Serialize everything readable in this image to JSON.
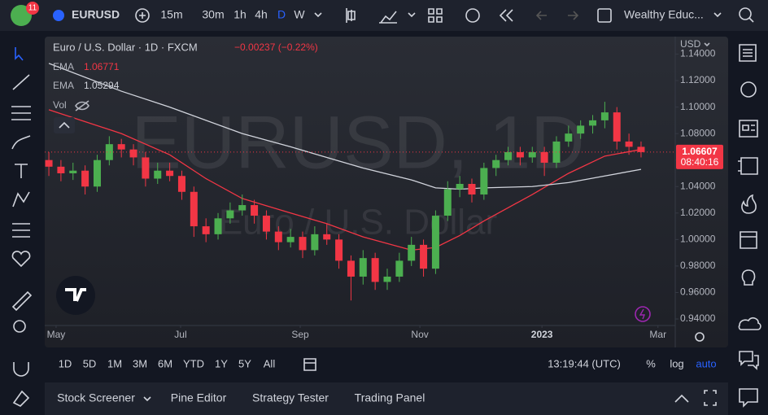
{
  "toolbar": {
    "badge": "11",
    "symbol": "EURUSD",
    "intervals": [
      "15m",
      "30m",
      "1h",
      "4h",
      "D",
      "W"
    ],
    "account": "Wealthy Educ..."
  },
  "legend": {
    "title": "Euro / U.S. Dollar · 1D · FXCM",
    "change": "−0.00237 (−0.22%)",
    "ema_fast_label": "EMA",
    "ema_fast_value": "1.06771",
    "ema_slow_label": "EMA",
    "ema_slow_value": "1.05294",
    "vol_label": "Vol"
  },
  "chart_data": {
    "type": "candlestick",
    "watermark": "EURUSD, 1D",
    "watermark_sub": "Euro / U.S. Dollar",
    "currency": "USD",
    "up_color": "#4caf50",
    "down_color": "#f23645",
    "open": [
      1.06,
      1.055,
      1.05,
      1.052,
      1.04,
      1.06,
      1.072,
      1.068,
      1.062,
      1.046,
      1.052,
      1.048,
      1.036,
      1.01,
      1.004,
      1.016,
      1.022,
      1.026,
      1.018,
      1.006,
      0.998,
      1.002,
      0.992,
      1.004,
      1.0,
      0.984,
      0.972,
      0.986,
      0.968,
      0.972,
      0.984,
      0.996,
      0.978,
      1.018,
      1.038,
      1.042,
      1.034,
      1.054,
      1.06,
      1.066,
      1.062,
      1.066,
      1.058,
      1.074,
      1.08,
      1.086,
      1.09,
      1.096,
      1.074,
      1.07
    ],
    "high": [
      1.066,
      1.06,
      1.058,
      1.056,
      1.064,
      1.078,
      1.076,
      1.072,
      1.066,
      1.058,
      1.058,
      1.052,
      1.04,
      1.016,
      1.02,
      1.028,
      1.034,
      1.03,
      1.022,
      1.01,
      1.008,
      1.006,
      1.01,
      1.012,
      1.004,
      0.988,
      0.992,
      0.99,
      0.978,
      0.99,
      1.002,
      1.0,
      1.022,
      1.044,
      1.048,
      1.046,
      1.058,
      1.064,
      1.07,
      1.07,
      1.07,
      1.07,
      1.078,
      1.086,
      1.09,
      1.094,
      1.104,
      1.1,
      1.08,
      1.074
    ],
    "low": [
      1.048,
      1.044,
      1.045,
      1.034,
      1.036,
      1.056,
      1.062,
      1.056,
      1.04,
      1.042,
      1.044,
      1.03,
      1.002,
      0.998,
      1.0,
      1.012,
      1.018,
      1.012,
      1.0,
      0.992,
      0.994,
      0.986,
      0.988,
      0.996,
      0.978,
      0.954,
      0.966,
      0.962,
      0.962,
      0.968,
      0.98,
      0.972,
      0.974,
      1.014,
      1.032,
      1.028,
      1.03,
      1.048,
      1.056,
      1.056,
      1.058,
      1.048,
      1.054,
      1.07,
      1.076,
      1.08,
      1.084,
      1.068,
      1.064,
      1.062
    ],
    "close": [
      1.055,
      1.05,
      1.052,
      1.04,
      1.06,
      1.072,
      1.068,
      1.062,
      1.046,
      1.052,
      1.048,
      1.036,
      1.01,
      1.004,
      1.016,
      1.022,
      1.026,
      1.018,
      1.006,
      0.998,
      1.002,
      0.992,
      1.004,
      1.0,
      0.984,
      0.972,
      0.986,
      0.968,
      0.972,
      0.984,
      0.996,
      0.978,
      1.018,
      1.038,
      1.042,
      1.034,
      1.054,
      1.06,
      1.066,
      1.062,
      1.066,
      1.058,
      1.074,
      1.08,
      1.086,
      1.09,
      1.096,
      1.074,
      1.07,
      1.066
    ],
    "series": [
      {
        "color": "#f23645",
        "x": [
          0,
          6,
          10,
          13,
          16,
          20,
          23,
          26,
          30,
          32,
          34,
          36,
          40,
          43,
          46,
          49
        ],
        "values": [
          1.098,
          1.08,
          1.064,
          1.046,
          1.031,
          1.02,
          1.012,
          1.002,
          0.992,
          0.994,
          1.003,
          1.014,
          1.034,
          1.05,
          1.063,
          1.068
        ]
      },
      {
        "color": "#d1d4dc",
        "x": [
          0,
          6,
          10,
          13,
          16,
          20,
          23,
          26,
          30,
          32,
          34,
          36,
          40,
          43,
          46,
          49
        ],
        "values": [
          1.133,
          1.112,
          1.1,
          1.09,
          1.08,
          1.07,
          1.062,
          1.054,
          1.045,
          1.039,
          1.038,
          1.039,
          1.04,
          1.043,
          1.048,
          1.053
        ]
      }
    ],
    "ylim": [
      0.9351,
      1.1532
    ],
    "yticks": [
      {
        "value": 0.94,
        "label": "0.94000"
      },
      {
        "value": 0.96,
        "label": "0.96000"
      },
      {
        "value": 0.98,
        "label": "0.98000"
      },
      {
        "value": 1.0,
        "label": "1.00000"
      },
      {
        "value": 1.02,
        "label": "1.02000"
      },
      {
        "value": 1.04,
        "label": "1.04000"
      },
      {
        "value": 1.06,
        "label": "1.06000"
      },
      {
        "value": 1.08,
        "label": "1.08000"
      },
      {
        "value": 1.1,
        "label": "1.10000"
      },
      {
        "value": 1.12,
        "label": "1.12000"
      },
      {
        "value": 1.14,
        "label": "1.14000"
      }
    ],
    "xlim": [
      -0.34,
      51.83
    ],
    "xticks": [
      {
        "value": 0.6,
        "label": "May"
      },
      {
        "value": 10.9,
        "label": "Jul"
      },
      {
        "value": 20.8,
        "label": "Sep"
      },
      {
        "value": 30.7,
        "label": "Nov"
      },
      {
        "value": 40.8,
        "label": "2023"
      },
      {
        "value": 50.4,
        "label": "Mar"
      }
    ],
    "last_price": 1.06607,
    "countdown": "08:40:16"
  },
  "bottom_bar": {
    "ranges": [
      "1D",
      "5D",
      "1M",
      "3M",
      "6M",
      "YTD",
      "1Y",
      "5Y",
      "All"
    ],
    "clock": "13:19:44 (UTC)",
    "options": [
      "%",
      "log",
      "auto"
    ]
  },
  "panel": {
    "tabs": [
      "Stock Screener",
      "Pine Editor",
      "Strategy Tester",
      "Trading Panel"
    ]
  }
}
